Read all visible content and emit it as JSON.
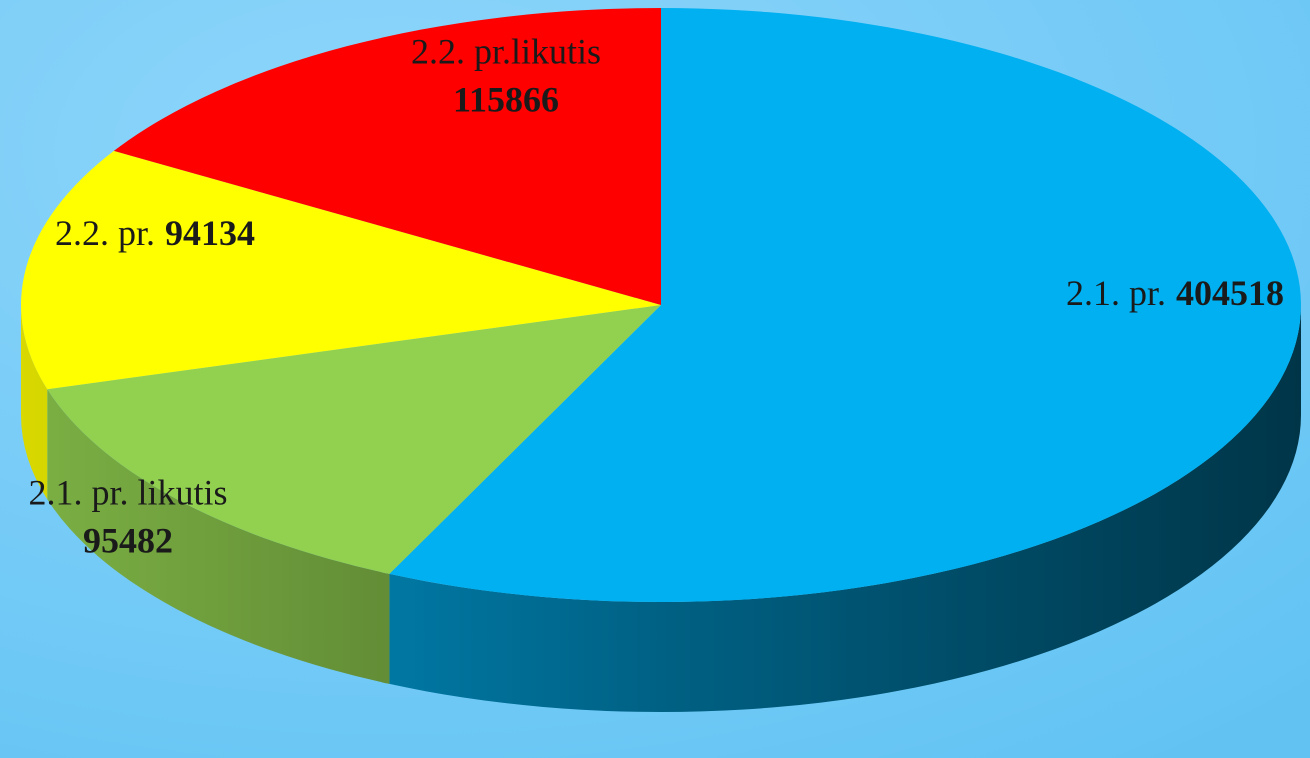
{
  "chart_data": {
    "type": "pie",
    "categories": [
      "2.1. pr.",
      "2.1. pr. likutis",
      "2.2. pr.",
      "2.2. pr.likutis"
    ],
    "values": [
      404518,
      95482,
      94134,
      115866
    ],
    "colors": [
      "#00b0f0",
      "#92d050",
      "#ffff00",
      "#ff0000"
    ]
  }
}
